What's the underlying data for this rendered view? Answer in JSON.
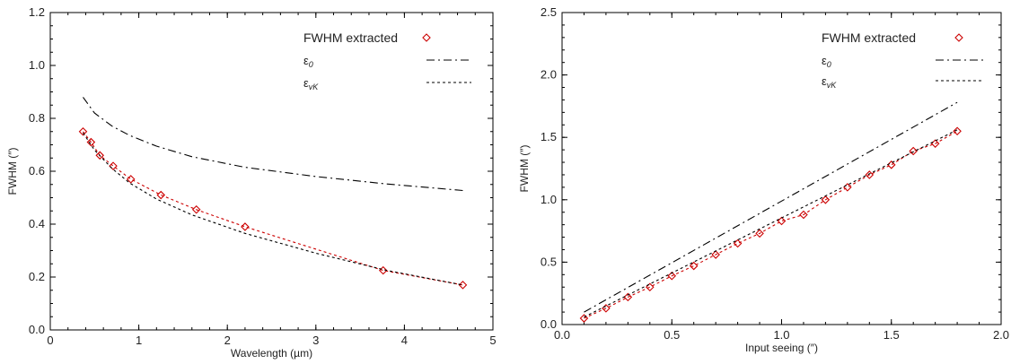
{
  "chart_data": [
    {
      "type": "scatter",
      "xlabel": "Wavelength (µm)",
      "ylabel": "FWHM (″)",
      "xlim": [
        0,
        5
      ],
      "ylim": [
        0,
        1.2
      ],
      "xticks": [
        "0",
        "1",
        "2",
        "3",
        "4",
        "5"
      ],
      "yticks": [
        "0.0",
        "0.2",
        "0.4",
        "0.6",
        "0.8",
        "1.0",
        "1.2"
      ],
      "legend_position": "top-right",
      "legend": [
        {
          "label": "FWHM extracted",
          "symbol": "",
          "sub": "",
          "style": "diamond",
          "color": "#cc0000"
        },
        {
          "label": "",
          "symbol": "ε",
          "sub": "0",
          "style": "dashdot",
          "color": "#000000"
        },
        {
          "label": "",
          "symbol": "ε",
          "sub": "vK",
          "style": "dotted",
          "color": "#000000"
        }
      ],
      "series": [
        {
          "kind": "markers",
          "marker": "diamond",
          "color": "#cc0000",
          "x": [
            0.37,
            0.46,
            0.56,
            0.71,
            0.91,
            1.25,
            1.65,
            2.2,
            3.76,
            4.66
          ],
          "y": [
            0.75,
            0.71,
            0.66,
            0.62,
            0.57,
            0.51,
            0.455,
            0.39,
            0.225,
            0.17
          ]
        },
        {
          "kind": "line",
          "style": "dotted",
          "color": "#cc0000",
          "x": [
            0.37,
            0.46,
            0.56,
            0.71,
            0.91,
            1.25,
            1.65,
            2.2,
            3.76,
            4.66
          ],
          "y": [
            0.75,
            0.71,
            0.66,
            0.62,
            0.57,
            0.51,
            0.455,
            0.39,
            0.225,
            0.17
          ]
        },
        {
          "kind": "line",
          "style": "dashdot",
          "color": "#000000",
          "x": [
            0.37,
            0.5,
            0.7,
            0.9,
            1.2,
            1.6,
            2.2,
            3.0,
            3.8,
            4.66
          ],
          "y": [
            0.88,
            0.82,
            0.77,
            0.735,
            0.695,
            0.655,
            0.615,
            0.58,
            0.552,
            0.527
          ]
        },
        {
          "kind": "line",
          "style": "dotted",
          "color": "#000000",
          "x": [
            0.37,
            0.5,
            0.7,
            0.9,
            1.2,
            1.6,
            2.2,
            3.0,
            3.8,
            4.66
          ],
          "y": [
            0.745,
            0.68,
            0.61,
            0.555,
            0.495,
            0.435,
            0.365,
            0.29,
            0.225,
            0.17
          ]
        }
      ]
    },
    {
      "type": "scatter",
      "xlabel": "Input seeing (″)",
      "ylabel": "FWHM (″)",
      "xlim": [
        0,
        2.0
      ],
      "ylim": [
        0,
        2.5
      ],
      "xticks": [
        "0.0",
        "0.5",
        "1.0",
        "1.5",
        "2.0"
      ],
      "yticks": [
        "0.0",
        "0.5",
        "1.0",
        "1.5",
        "2.0",
        "2.5"
      ],
      "legend_position": "top-right",
      "legend": [
        {
          "label": "FWHM extracted",
          "symbol": "",
          "sub": "",
          "style": "diamond",
          "color": "#cc0000"
        },
        {
          "label": "",
          "symbol": "ε",
          "sub": "0",
          "style": "dashdot",
          "color": "#000000"
        },
        {
          "label": "",
          "symbol": "ε",
          "sub": "vK",
          "style": "dotted",
          "color": "#000000"
        }
      ],
      "series": [
        {
          "kind": "markers",
          "marker": "diamond",
          "color": "#cc0000",
          "x": [
            0.1,
            0.2,
            0.3,
            0.4,
            0.5,
            0.6,
            0.7,
            0.8,
            0.9,
            1.0,
            1.1,
            1.2,
            1.3,
            1.4,
            1.5,
            1.6,
            1.7,
            1.8
          ],
          "y": [
            0.05,
            0.13,
            0.22,
            0.3,
            0.39,
            0.47,
            0.56,
            0.65,
            0.73,
            0.83,
            0.88,
            1.0,
            1.1,
            1.2,
            1.28,
            1.39,
            1.45,
            1.55
          ]
        },
        {
          "kind": "line",
          "style": "dotted",
          "color": "#cc0000",
          "x": [
            0.1,
            0.2,
            0.3,
            0.4,
            0.5,
            0.6,
            0.7,
            0.8,
            0.9,
            1.0,
            1.1,
            1.2,
            1.3,
            1.4,
            1.5,
            1.6,
            1.7,
            1.8
          ],
          "y": [
            0.05,
            0.13,
            0.22,
            0.3,
            0.39,
            0.47,
            0.56,
            0.65,
            0.73,
            0.83,
            0.88,
            1.0,
            1.1,
            1.2,
            1.28,
            1.39,
            1.45,
            1.55
          ]
        },
        {
          "kind": "line",
          "style": "dashdot",
          "color": "#000000",
          "x": [
            0.1,
            1.8
          ],
          "y": [
            0.1,
            1.78
          ]
        },
        {
          "kind": "line",
          "style": "dotted",
          "color": "#000000",
          "x": [
            0.1,
            1.8
          ],
          "y": [
            0.06,
            1.56
          ]
        }
      ]
    }
  ]
}
